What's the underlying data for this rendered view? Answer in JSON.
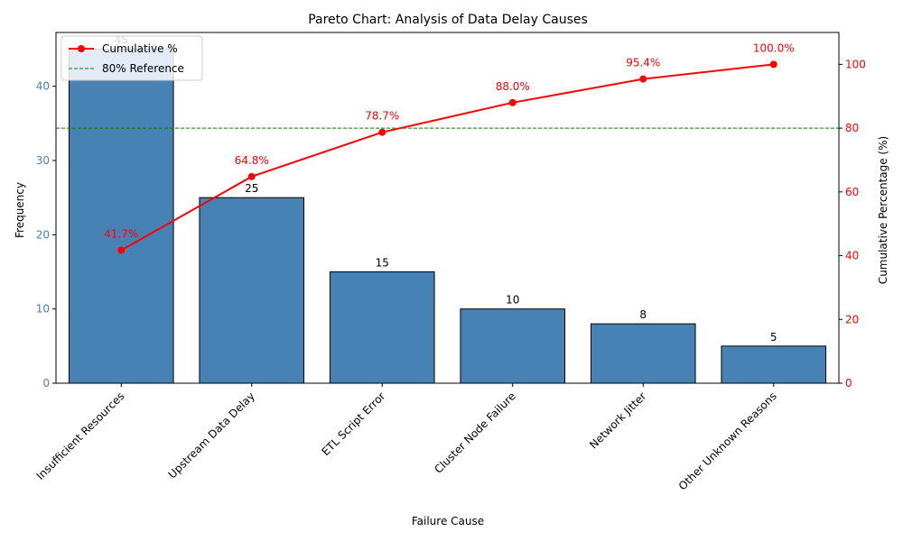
{
  "chart_data": {
    "type": "bar",
    "title": "Pareto Chart: Analysis of Data Delay Causes",
    "xlabel": "Failure Cause",
    "ylabel": "Frequency",
    "ylabel_right": "Cumulative Percentage (%)",
    "categories": [
      "Insufficient Resources",
      "Upstream Data Delay",
      "ETL Script Error",
      "Cluster Node Failure",
      "Network Jitter",
      "Other Unknown Reasons"
    ],
    "values": [
      45,
      25,
      15,
      10,
      8,
      5
    ],
    "bar_labels": [
      "45",
      "25",
      "15",
      "10",
      "8",
      "5"
    ],
    "cumulative": [
      41.7,
      64.8,
      78.7,
      88.0,
      95.4,
      100.0
    ],
    "cumulative_labels": [
      "41.7%",
      "64.8%",
      "78.7%",
      "88.0%",
      "95.4%",
      "100.0%"
    ],
    "reference_line": 80,
    "ylim": [
      0,
      47.25
    ],
    "ylim_right": [
      0,
      110
    ],
    "yticks": [
      0,
      10,
      20,
      30,
      40
    ],
    "yticks_right": [
      0,
      20,
      40,
      60,
      80,
      100
    ],
    "legend": {
      "position": "upper-left",
      "entries": [
        "Cumulative %",
        "80% Reference"
      ]
    },
    "grid": false,
    "colors": {
      "bar": "#4682b4",
      "bar_edge": "#000000",
      "line": "#ff0000",
      "reference": "#008000",
      "left_axis": "#4682b4",
      "right_axis": "#ff0000"
    }
  }
}
